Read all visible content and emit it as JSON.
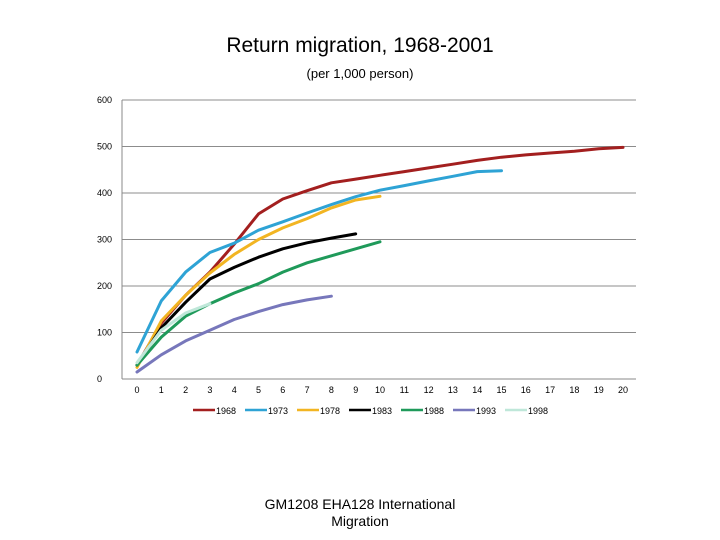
{
  "title": "Return migration, 1968-2001",
  "subtitle": "(per 1,000 person)",
  "footer_line1": "GM1208 EHA128   International",
  "footer_line2": "Migration",
  "chart_data": {
    "type": "line",
    "title": "Return migration, 1968-2001",
    "subtitle": "(per 1,000 person)",
    "xlabel": "",
    "ylabel": "",
    "xlim": [
      0,
      20
    ],
    "ylim": [
      0,
      600
    ],
    "x_ticks": [
      0,
      1,
      2,
      3,
      4,
      5,
      6,
      7,
      8,
      9,
      10,
      11,
      12,
      13,
      14,
      15,
      16,
      17,
      18,
      19,
      20
    ],
    "y_ticks": [
      0,
      100,
      200,
      300,
      400,
      500,
      600
    ],
    "grid": "horizontal",
    "legend_position": "bottom",
    "series": [
      {
        "name": "1968",
        "color": "#a31f1f",
        "x": [
          0,
          1,
          2,
          3,
          4,
          5,
          6,
          7,
          8,
          9,
          10,
          11,
          12,
          13,
          14,
          15,
          16,
          17,
          18,
          19,
          20
        ],
        "y": [
          30,
          120,
          180,
          230,
          290,
          355,
          387,
          405,
          422,
          430,
          438,
          446,
          454,
          462,
          470,
          477,
          482,
          486,
          490,
          495,
          498
        ]
      },
      {
        "name": "1973",
        "color": "#2ea3d5",
        "x": [
          0,
          1,
          2,
          3,
          4,
          5,
          6,
          7,
          8,
          9,
          10,
          11,
          12,
          13,
          14,
          15
        ],
        "y": [
          58,
          168,
          230,
          272,
          292,
          320,
          338,
          357,
          375,
          392,
          406,
          416,
          426,
          436,
          446,
          448
        ]
      },
      {
        "name": "1978",
        "color": "#f2b522",
        "x": [
          0,
          1,
          2,
          3,
          4,
          5,
          6,
          7,
          8,
          9,
          10
        ],
        "y": [
          25,
          125,
          180,
          228,
          268,
          300,
          325,
          345,
          368,
          385,
          393
        ]
      },
      {
        "name": "1983",
        "color": "#000000",
        "x": [
          0,
          1,
          2,
          3,
          4,
          5,
          6,
          7,
          8,
          9
        ],
        "y": [
          30,
          110,
          165,
          215,
          240,
          262,
          280,
          293,
          303,
          312
        ]
      },
      {
        "name": "1988",
        "color": "#1f9a5a",
        "x": [
          0,
          1,
          2,
          3,
          4,
          5,
          6,
          7,
          8,
          9,
          10
        ],
        "y": [
          30,
          90,
          135,
          162,
          185,
          205,
          230,
          250,
          265,
          280,
          295
        ]
      },
      {
        "name": "1993",
        "color": "#7777bb",
        "x": [
          0,
          1,
          2,
          3,
          4,
          5,
          6,
          7,
          8
        ],
        "y": [
          15,
          52,
          82,
          105,
          128,
          145,
          160,
          170,
          178
        ]
      },
      {
        "name": "1998",
        "color": "#bfe7d9",
        "x": [
          0,
          1,
          2,
          3
        ],
        "y": [
          35,
          105,
          142,
          162
        ]
      }
    ]
  }
}
